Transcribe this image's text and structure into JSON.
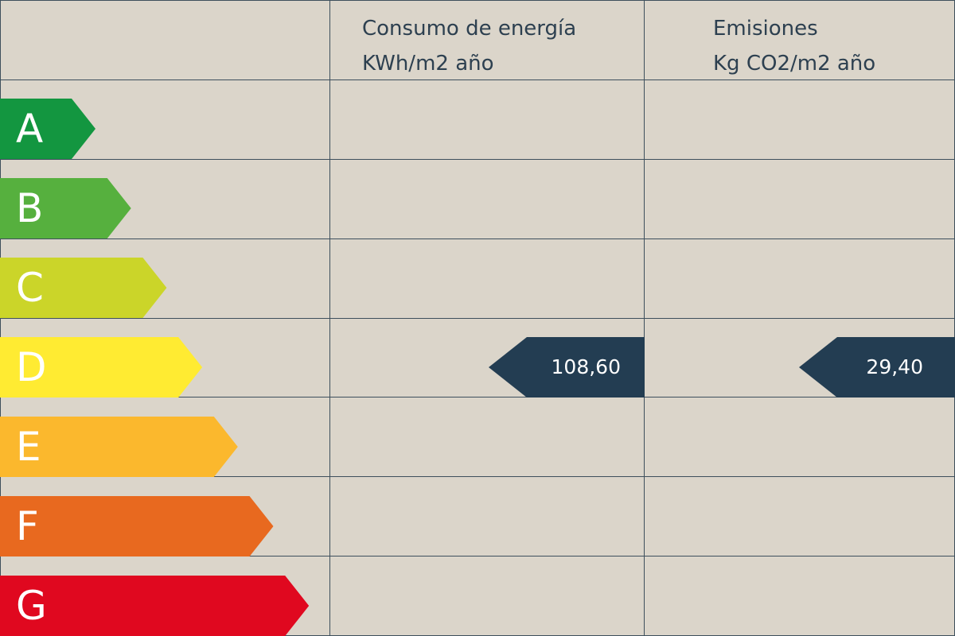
{
  "header": {
    "energy": {
      "line1": "Consumo de energía",
      "line2": "KWh/m2 año"
    },
    "emissions": {
      "line1": "Emisiones",
      "line2": "Kg CO2/m2 año"
    }
  },
  "ratings": [
    {
      "letter": "A",
      "color": "#139640"
    },
    {
      "letter": "B",
      "color": "#56b03e"
    },
    {
      "letter": "C",
      "color": "#cbd529"
    },
    {
      "letter": "D",
      "color": "#ffeb32"
    },
    {
      "letter": "E",
      "color": "#fbb82d"
    },
    {
      "letter": "F",
      "color": "#e8691f"
    },
    {
      "letter": "G",
      "color": "#e0081f"
    }
  ],
  "energy_value": {
    "rating": "D",
    "value": "108,60"
  },
  "emissions_value": {
    "rating": "D",
    "value": "29,40"
  },
  "marker_color": "#233d52"
}
